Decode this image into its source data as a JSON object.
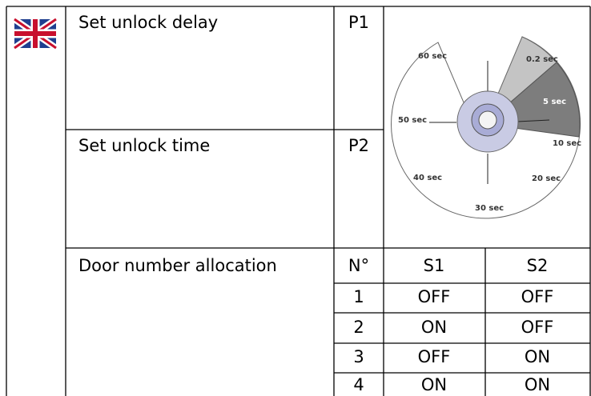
{
  "rows": [
    {
      "label": "Set unlock delay",
      "param": "P1"
    },
    {
      "label": "Set unlock time",
      "param": "P2"
    }
  ],
  "dial": {
    "labels": [
      "60 sec",
      "0.2 sec",
      "5 sec",
      "50 sec",
      "10 sec",
      "40 sec",
      "20 sec",
      "30 sec"
    ]
  },
  "door_table": {
    "label": "Door number allocation",
    "header": [
      "N°",
      "S1",
      "S2"
    ],
    "rows": [
      [
        "1",
        "OFF",
        "OFF"
      ],
      [
        "2",
        "ON",
        "OFF"
      ],
      [
        "3",
        "OFF",
        "ON"
      ],
      [
        "4",
        "ON",
        "ON"
      ]
    ]
  }
}
